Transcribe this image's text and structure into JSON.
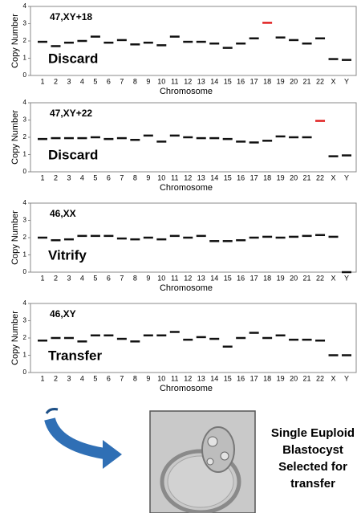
{
  "chart_data": [
    {
      "type": "dash",
      "label": "47,XY+18",
      "annotation": "Discard",
      "ylabel": "Copy Number",
      "xlabel": "Chromosome",
      "categories": [
        "1",
        "2",
        "3",
        "4",
        "5",
        "6",
        "7",
        "8",
        "9",
        "10",
        "11",
        "12",
        "13",
        "14",
        "15",
        "16",
        "17",
        "18",
        "19",
        "20",
        "21",
        "22",
        "X",
        "Y"
      ],
      "values": [
        1.95,
        1.7,
        1.9,
        2.0,
        2.25,
        1.9,
        2.05,
        1.8,
        1.9,
        1.75,
        2.25,
        1.95,
        1.95,
        1.85,
        1.6,
        1.85,
        2.15,
        3.05,
        2.2,
        2.05,
        1.85,
        2.15,
        0.95,
        0.9
      ],
      "color": "#111111",
      "highlight_color": "#e02020",
      "highlight": [
        17
      ],
      "ylim": [
        0,
        4
      ],
      "yticks": [
        0,
        1,
        2,
        3,
        4
      ]
    },
    {
      "type": "dash",
      "label": "47,XY+22",
      "annotation": "Discard",
      "ylabel": "Copy Number",
      "xlabel": "Chromosome",
      "categories": [
        "1",
        "2",
        "3",
        "4",
        "5",
        "6",
        "7",
        "8",
        "9",
        "10",
        "11",
        "12",
        "13",
        "14",
        "15",
        "16",
        "17",
        "18",
        "19",
        "20",
        "21",
        "22",
        "X",
        "Y"
      ],
      "values": [
        1.9,
        1.95,
        1.95,
        1.95,
        2.0,
        1.9,
        1.95,
        1.85,
        2.1,
        1.75,
        2.1,
        2.0,
        1.95,
        1.95,
        1.9,
        1.75,
        1.7,
        1.8,
        2.05,
        2.0,
        2.0,
        2.95,
        0.9,
        0.95
      ],
      "color": "#111111",
      "highlight_color": "#e02020",
      "highlight": [
        21
      ],
      "ylim": [
        0,
        4
      ],
      "yticks": [
        0,
        1,
        2,
        3,
        4
      ]
    },
    {
      "type": "dash",
      "label": "46,XX",
      "annotation": "Vitrify",
      "ylabel": "Copy Number",
      "xlabel": "Chromosome",
      "categories": [
        "1",
        "2",
        "3",
        "4",
        "5",
        "6",
        "7",
        "8",
        "9",
        "10",
        "11",
        "12",
        "13",
        "14",
        "15",
        "16",
        "17",
        "18",
        "19",
        "20",
        "21",
        "22",
        "X",
        "Y"
      ],
      "values": [
        2.0,
        1.85,
        1.9,
        2.1,
        2.1,
        2.1,
        1.95,
        1.9,
        2.0,
        1.9,
        2.1,
        2.0,
        2.1,
        1.8,
        1.8,
        1.85,
        2.0,
        2.05,
        2.0,
        2.05,
        2.1,
        2.15,
        2.05,
        0.0
      ],
      "color": "#111111",
      "highlight_color": "#e02020",
      "highlight": [],
      "ylim": [
        0,
        4
      ],
      "yticks": [
        0,
        1,
        2,
        3,
        4
      ]
    },
    {
      "type": "dash",
      "label": "46,XY",
      "annotation": "Transfer",
      "ylabel": "Copy Number",
      "xlabel": "Chromosome",
      "categories": [
        "1",
        "2",
        "3",
        "4",
        "5",
        "6",
        "7",
        "8",
        "9",
        "10",
        "11",
        "12",
        "13",
        "14",
        "15",
        "16",
        "17",
        "18",
        "19",
        "20",
        "21",
        "22",
        "X",
        "Y"
      ],
      "values": [
        1.85,
        2.0,
        2.0,
        1.8,
        2.15,
        2.15,
        1.95,
        1.8,
        2.15,
        2.15,
        2.35,
        1.9,
        2.05,
        1.95,
        1.5,
        2.0,
        2.3,
        2.0,
        2.15,
        1.9,
        1.9,
        1.85,
        1.0,
        1.0
      ],
      "color": "#111111",
      "highlight_color": "#e02020",
      "highlight": [],
      "ylim": [
        0,
        4
      ],
      "yticks": [
        0,
        1,
        2,
        3,
        4
      ]
    }
  ],
  "caption": {
    "lines": [
      "Single Euploid",
      "Blastocyst",
      "Selected for",
      "transfer"
    ]
  }
}
